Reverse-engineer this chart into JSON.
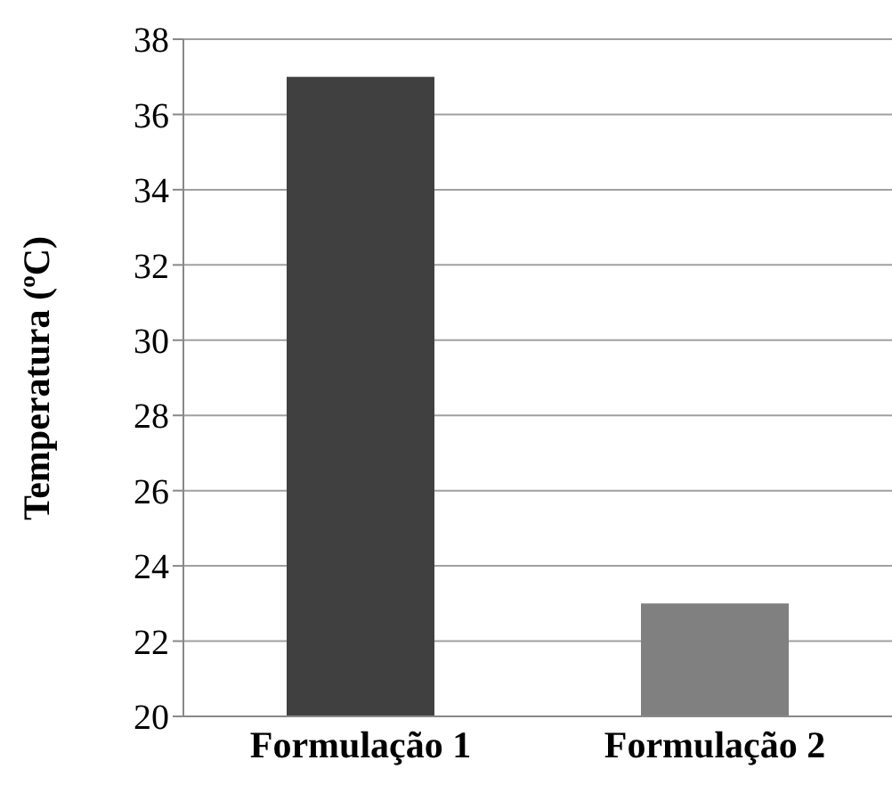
{
  "chart_data": {
    "type": "bar",
    "ylabel": "Temperatura (ºC)",
    "categories": [
      "Formulação 1",
      "Formulação 2"
    ],
    "values": [
      37,
      23
    ],
    "colors": [
      "#404040",
      "#808080"
    ],
    "ylim": [
      20,
      38
    ],
    "yticks": [
      20,
      22,
      24,
      26,
      28,
      30,
      32,
      34,
      36,
      38
    ],
    "grid": "y"
  }
}
